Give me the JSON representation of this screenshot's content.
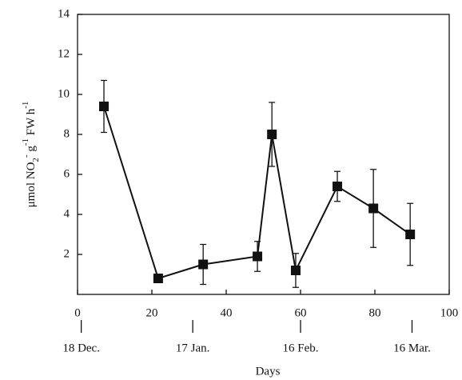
{
  "chart_data": {
    "type": "line",
    "xlabel": "Days",
    "ylabel": [
      "μmol NO",
      "2",
      "-",
      " g",
      "-1",
      "  FW h",
      "-1"
    ],
    "xlim": [
      0,
      100
    ],
    "xticks": [
      0,
      20,
      40,
      60,
      80,
      100
    ],
    "ylim": [
      0,
      14
    ],
    "yticks": [
      2,
      4,
      6,
      8,
      10,
      12,
      14
    ],
    "date_ticks": [
      {
        "value": 1,
        "label": "18 Dec."
      },
      {
        "value": 31,
        "label": "17 Jan."
      },
      {
        "value": 60,
        "label": "16 Feb."
      },
      {
        "value": 90,
        "label": "16 Mar."
      }
    ],
    "series": [
      {
        "color": "#111111",
        "x": [
          7.1,
          21.7,
          33.8,
          48.4,
          52.3,
          58.7,
          69.9,
          79.6,
          89.5
        ],
        "values": [
          9.4,
          0.8,
          1.5,
          1.9,
          8.0,
          1.2,
          5.4,
          4.3,
          3.0
        ],
        "errors": [
          1.3,
          0.1,
          1.0,
          0.75,
          1.6,
          0.85,
          0.75,
          1.95,
          1.55
        ]
      }
    ]
  }
}
